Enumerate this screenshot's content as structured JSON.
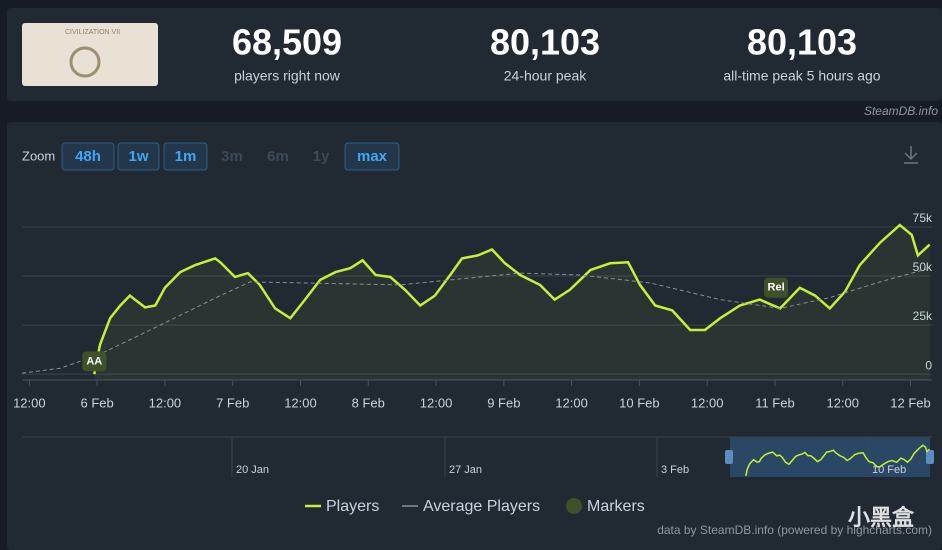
{
  "site": "SteamDB.info",
  "stats": [
    {
      "value": "68,509",
      "label": "players right now"
    },
    {
      "value": "80,103",
      "label": "24-hour peak"
    },
    {
      "value": "80,103",
      "label": "all-time peak 5 hours ago"
    }
  ],
  "zoom": {
    "label": "Zoom",
    "buttons": [
      "48h",
      "1w",
      "1m",
      "3m",
      "6m",
      "1y",
      "max"
    ],
    "enabled": [
      true,
      true,
      true,
      false,
      false,
      false,
      true
    ]
  },
  "navigator": {
    "labels": [
      "20 Jan",
      "27 Jan",
      "3 Feb",
      "10 Feb"
    ]
  },
  "credit": "data by SteamDB.info (powered by highcharts.com)",
  "watermark": "小黑盒",
  "chart_data": {
    "type": "line",
    "xlim": [
      10.7,
      171.8
    ],
    "xticks": [
      {
        "value": 12,
        "label": "12:00"
      },
      {
        "value": 24,
        "label": "6 Feb"
      },
      {
        "value": 36,
        "label": "12:00"
      },
      {
        "value": 48,
        "label": "7 Feb"
      },
      {
        "value": 60,
        "label": "12:00"
      },
      {
        "value": 72,
        "label": "8 Feb"
      },
      {
        "value": 84,
        "label": "12:00"
      },
      {
        "value": 96,
        "label": "9 Feb"
      },
      {
        "value": 108,
        "label": "12:00"
      },
      {
        "value": 120,
        "label": "10 Feb"
      },
      {
        "value": 132,
        "label": "12:00"
      },
      {
        "value": 144,
        "label": "11 Feb"
      },
      {
        "value": 156,
        "label": "12:00"
      },
      {
        "value": 168,
        "label": "12 Feb"
      }
    ],
    "ylim": [
      -3000,
      96400
    ],
    "yticks": [
      0,
      {
        "value": 25000,
        "label": "25k"
      },
      {
        "value": 50000,
        "label": "50k"
      },
      {
        "value": 75000,
        "label": "75k"
      }
    ],
    "grid": true,
    "series": [
      {
        "name": "Players",
        "color": "#c4f036",
        "x": [
          23.5,
          24.5,
          26.3,
          28.1,
          29.8,
          30.7,
          32.5,
          34.3,
          36,
          38.7,
          41.3,
          44.9,
          45.8,
          48.4,
          50.7,
          52.8,
          55.5,
          58.2,
          60.8,
          63.5,
          66.2,
          68.8,
          71,
          73.3,
          75.9,
          78.5,
          81.2,
          83.8,
          86.5,
          88.6,
          91.4,
          93.9,
          96.2,
          98.9,
          102.4,
          105,
          107.7,
          111.3,
          114.8,
          118,
          120.1,
          122.8,
          125.8,
          129,
          131.6,
          134.3,
          137.8,
          141.3,
          144.9,
          148.4,
          151.1,
          153.7,
          156.4,
          159,
          162.6,
          166.1,
          168.2,
          169.3,
          171.4
        ],
        "values": [
          0,
          15000,
          28500,
          35000,
          40000,
          38000,
          34000,
          35000,
          44000,
          52000,
          55500,
          59000,
          57000,
          49500,
          51500,
          45500,
          33500,
          28500,
          38000,
          48000,
          52000,
          54000,
          58000,
          50500,
          49500,
          43000,
          35000,
          40000,
          50500,
          59000,
          60500,
          63500,
          56500,
          50500,
          45500,
          38000,
          43000,
          53000,
          56500,
          57000,
          45500,
          35000,
          32500,
          22500,
          22500,
          28500,
          35000,
          38000,
          33500,
          44000,
          40000,
          33500,
          42000,
          55500,
          67000,
          76000,
          71000,
          60500,
          66000
        ]
      },
      {
        "name": "Average Players",
        "color": "#8a8f98",
        "x": [
          10.7,
          17.5,
          24,
          31.6,
          38.7,
          45.8,
          51.1,
          60,
          77.6,
          86.5,
          98.9,
          109.5,
          121.9,
          134.3,
          144.9,
          153.7,
          162.6,
          171.4
        ],
        "values": [
          500,
          3000,
          9500,
          20000,
          30000,
          40000,
          47000,
          46500,
          45500,
          48000,
          51500,
          50500,
          46500,
          38000,
          33500,
          39000,
          47000,
          54000
        ]
      }
    ],
    "markers": {
      "name": "Markers",
      "color": "#3d5229",
      "points": [
        {
          "label": "AA",
          "x": 23.5,
          "value": 6500
        },
        {
          "label": "Rel",
          "x": 144.2,
          "value": 44000
        }
      ]
    }
  }
}
